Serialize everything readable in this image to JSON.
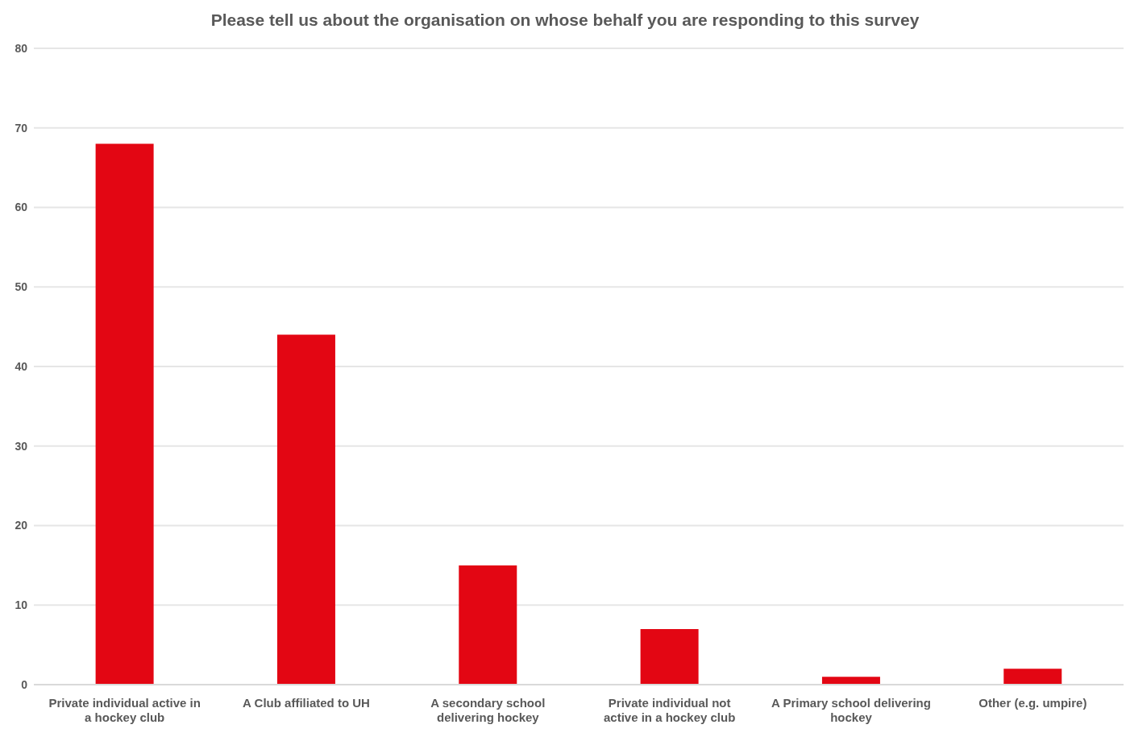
{
  "chart_data": {
    "type": "bar",
    "title": "Please tell us about the organisation on whose behalf you are responding to this survey",
    "categories": [
      "Private individual active in a hockey club",
      "A Club affiliated to UH",
      "A secondary school delivering hockey",
      "Private individual not active in a hockey club",
      "A Primary school delivering hockey",
      "Other (e.g. umpire)"
    ],
    "values": [
      68,
      44,
      15,
      7,
      1,
      2
    ],
    "color": "#e30613",
    "ylim": [
      0,
      80
    ],
    "yticks": [
      0,
      10,
      20,
      30,
      40,
      50,
      60,
      70,
      80
    ],
    "grid": "y"
  }
}
